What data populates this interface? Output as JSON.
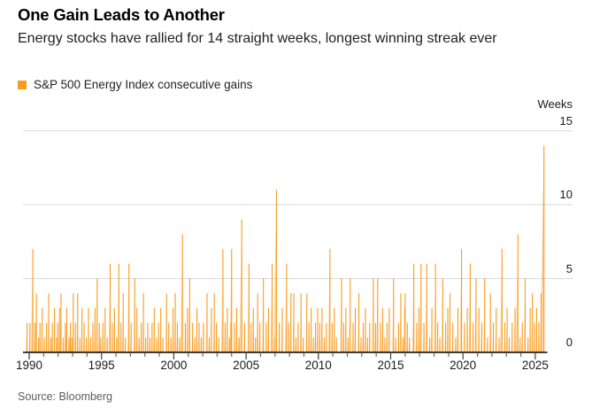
{
  "header": {
    "title": "One Gain Leads to Another",
    "subtitle": "Energy stocks have rallied for 14 straight weeks, longest winning streak ever"
  },
  "legend": {
    "label": "S&P 500 Energy Index consecutive gains",
    "marker_color": "#F79C1D"
  },
  "source": "Source: Bloomberg",
  "chart_data": {
    "type": "bar",
    "title": "One Gain Leads to Another",
    "series_name": "S&P 500 Energy Index consecutive gains",
    "xlabel": "",
    "ylabel": "Weeks",
    "ylim": [
      0,
      15
    ],
    "y_ticks": [
      0,
      5,
      10,
      15
    ],
    "xlim": [
      1989.6,
      2026.2
    ],
    "x_major_ticks": [
      1990,
      1995,
      2000,
      2005,
      2010,
      2015,
      2020,
      2025
    ],
    "x_minor_tick_step_years": 1,
    "grid": "horizontal",
    "y_axis_side": "right",
    "colors": {
      "bar_line": "#F89C1E",
      "bar_fill": "#FBAE55",
      "grid": "#D8D8D8",
      "baseline": "#000000",
      "tick_minor": "#6E6E6E",
      "tick_major": "#3F3F3F",
      "axis_text": "#1A1A1A"
    },
    "notable_peaks": [
      {
        "year": 1990.25,
        "weeks": 7
      },
      {
        "year": 1994.7,
        "weeks": 5
      },
      {
        "year": 1995.6,
        "weeks": 6
      },
      {
        "year": 1996.9,
        "weeks": 6
      },
      {
        "year": 2000.6,
        "weeks": 8
      },
      {
        "year": 2003.4,
        "weeks": 7
      },
      {
        "year": 2004.7,
        "weeks": 9
      },
      {
        "year": 2007.1,
        "weeks": 11
      },
      {
        "year": 2010.8,
        "weeks": 7
      },
      {
        "year": 2019.9,
        "weeks": 7
      },
      {
        "year": 2022.7,
        "weeks": 7
      },
      {
        "year": 2023.8,
        "weeks": 8
      },
      {
        "year": 2025.6,
        "weeks": 14
      }
    ],
    "streaks": [
      [
        1989.85,
        2
      ],
      [
        1990.05,
        2
      ],
      [
        1990.25,
        7
      ],
      [
        1990.4,
        2
      ],
      [
        1990.5,
        4
      ],
      [
        1990.65,
        1
      ],
      [
        1990.75,
        2
      ],
      [
        1990.9,
        3
      ],
      [
        1991.05,
        1
      ],
      [
        1991.2,
        2
      ],
      [
        1991.35,
        4
      ],
      [
        1991.5,
        1
      ],
      [
        1991.6,
        2
      ],
      [
        1991.75,
        3
      ],
      [
        1991.9,
        1
      ],
      [
        1991.97,
        2
      ],
      [
        1992.1,
        3
      ],
      [
        1992.2,
        4
      ],
      [
        1992.35,
        1
      ],
      [
        1992.5,
        2
      ],
      [
        1992.6,
        3
      ],
      [
        1992.75,
        1
      ],
      [
        1992.85,
        2
      ],
      [
        1992.95,
        1
      ],
      [
        1993.05,
        4
      ],
      [
        1993.2,
        2
      ],
      [
        1993.35,
        4
      ],
      [
        1993.5,
        1
      ],
      [
        1993.65,
        3
      ],
      [
        1993.8,
        2
      ],
      [
        1993.95,
        1
      ],
      [
        1994.1,
        3
      ],
      [
        1994.25,
        1
      ],
      [
        1994.4,
        2
      ],
      [
        1994.55,
        3
      ],
      [
        1994.7,
        5
      ],
      [
        1994.85,
        2
      ],
      [
        1994.95,
        1
      ],
      [
        1995.1,
        2
      ],
      [
        1995.25,
        3
      ],
      [
        1995.4,
        1
      ],
      [
        1995.6,
        6
      ],
      [
        1995.75,
        2
      ],
      [
        1995.9,
        3
      ],
      [
        1996.05,
        1
      ],
      [
        1996.2,
        6
      ],
      [
        1996.35,
        2
      ],
      [
        1996.5,
        4
      ],
      [
        1996.65,
        1
      ],
      [
        1996.9,
        6
      ],
      [
        1997.05,
        2
      ],
      [
        1997.3,
        5
      ],
      [
        1997.45,
        3
      ],
      [
        1997.6,
        1
      ],
      [
        1997.75,
        2
      ],
      [
        1997.9,
        4
      ],
      [
        1998.05,
        1
      ],
      [
        1998.2,
        2
      ],
      [
        1998.35,
        1
      ],
      [
        1998.5,
        2
      ],
      [
        1998.65,
        3
      ],
      [
        1998.8,
        1
      ],
      [
        1998.95,
        2
      ],
      [
        1999.1,
        3
      ],
      [
        1999.25,
        1
      ],
      [
        1999.5,
        4
      ],
      [
        1999.65,
        2
      ],
      [
        1999.8,
        1
      ],
      [
        1999.95,
        3
      ],
      [
        2000.1,
        4
      ],
      [
        2000.25,
        2
      ],
      [
        2000.4,
        1
      ],
      [
        2000.6,
        8
      ],
      [
        2000.8,
        2
      ],
      [
        2000.95,
        3
      ],
      [
        2001.1,
        5
      ],
      [
        2001.3,
        2
      ],
      [
        2001.45,
        1
      ],
      [
        2001.6,
        3
      ],
      [
        2001.75,
        2
      ],
      [
        2001.9,
        1
      ],
      [
        2002.05,
        2
      ],
      [
        2002.3,
        4
      ],
      [
        2002.45,
        1
      ],
      [
        2002.6,
        3
      ],
      [
        2002.8,
        4
      ],
      [
        2002.95,
        2
      ],
      [
        2003.1,
        1
      ],
      [
        2003.4,
        7
      ],
      [
        2003.55,
        2
      ],
      [
        2003.7,
        3
      ],
      [
        2003.85,
        1
      ],
      [
        2003.95,
        2
      ],
      [
        2004.0,
        7
      ],
      [
        2004.2,
        2
      ],
      [
        2004.35,
        3
      ],
      [
        2004.5,
        1
      ],
      [
        2004.7,
        9
      ],
      [
        2004.9,
        2
      ],
      [
        2005.2,
        6
      ],
      [
        2005.35,
        2
      ],
      [
        2005.5,
        3
      ],
      [
        2005.65,
        1
      ],
      [
        2005.8,
        4
      ],
      [
        2005.95,
        2
      ],
      [
        2006.2,
        5
      ],
      [
        2006.4,
        2
      ],
      [
        2006.55,
        3
      ],
      [
        2006.8,
        6
      ],
      [
        2006.95,
        1
      ],
      [
        2007.1,
        11
      ],
      [
        2007.3,
        2
      ],
      [
        2007.5,
        3
      ],
      [
        2007.8,
        6
      ],
      [
        2007.95,
        2
      ],
      [
        2008.1,
        4
      ],
      [
        2008.3,
        4
      ],
      [
        2008.45,
        1
      ],
      [
        2008.6,
        2
      ],
      [
        2008.8,
        4
      ],
      [
        2008.95,
        1
      ],
      [
        2009.2,
        4
      ],
      [
        2009.35,
        2
      ],
      [
        2009.5,
        3
      ],
      [
        2009.65,
        1
      ],
      [
        2009.8,
        2
      ],
      [
        2009.95,
        3
      ],
      [
        2010.1,
        2
      ],
      [
        2010.25,
        3
      ],
      [
        2010.4,
        1
      ],
      [
        2010.55,
        2
      ],
      [
        2010.8,
        7
      ],
      [
        2010.95,
        2
      ],
      [
        2011.1,
        3
      ],
      [
        2011.25,
        1
      ],
      [
        2011.6,
        5
      ],
      [
        2011.75,
        2
      ],
      [
        2011.9,
        3
      ],
      [
        2012.05,
        1
      ],
      [
        2012.2,
        5
      ],
      [
        2012.4,
        2
      ],
      [
        2012.55,
        3
      ],
      [
        2012.8,
        4
      ],
      [
        2012.95,
        1
      ],
      [
        2013.1,
        2
      ],
      [
        2013.25,
        3
      ],
      [
        2013.4,
        1
      ],
      [
        2013.55,
        2
      ],
      [
        2013.8,
        5
      ],
      [
        2013.95,
        2
      ],
      [
        2014.1,
        5
      ],
      [
        2014.3,
        2
      ],
      [
        2014.45,
        3
      ],
      [
        2014.6,
        1
      ],
      [
        2014.75,
        2
      ],
      [
        2014.9,
        3
      ],
      [
        2015.2,
        5
      ],
      [
        2015.35,
        1
      ],
      [
        2015.55,
        2
      ],
      [
        2015.7,
        4
      ],
      [
        2015.85,
        1
      ],
      [
        2015.97,
        3
      ],
      [
        2016.0,
        4
      ],
      [
        2016.15,
        2
      ],
      [
        2016.3,
        1
      ],
      [
        2016.6,
        6
      ],
      [
        2016.8,
        2
      ],
      [
        2016.95,
        3
      ],
      [
        2017.1,
        6
      ],
      [
        2017.3,
        2
      ],
      [
        2017.5,
        6
      ],
      [
        2017.7,
        1
      ],
      [
        2017.85,
        3
      ],
      [
        2018.1,
        6
      ],
      [
        2018.25,
        2
      ],
      [
        2018.4,
        1
      ],
      [
        2018.6,
        5
      ],
      [
        2018.8,
        2
      ],
      [
        2018.95,
        3
      ],
      [
        2019.1,
        4
      ],
      [
        2019.3,
        2
      ],
      [
        2019.5,
        1
      ],
      [
        2019.65,
        3
      ],
      [
        2019.9,
        7
      ],
      [
        2020.1,
        2
      ],
      [
        2020.3,
        3
      ],
      [
        2020.5,
        6
      ],
      [
        2020.7,
        2
      ],
      [
        2020.9,
        5
      ],
      [
        2021.1,
        3
      ],
      [
        2021.3,
        2
      ],
      [
        2021.5,
        5
      ],
      [
        2021.7,
        1
      ],
      [
        2021.9,
        4
      ],
      [
        2022.1,
        2
      ],
      [
        2022.3,
        3
      ],
      [
        2022.5,
        1
      ],
      [
        2022.7,
        7
      ],
      [
        2022.9,
        2
      ],
      [
        2023.05,
        3
      ],
      [
        2023.2,
        1
      ],
      [
        2023.4,
        2
      ],
      [
        2023.6,
        3
      ],
      [
        2023.8,
        8
      ],
      [
        2023.95,
        1
      ],
      [
        2024.1,
        2
      ],
      [
        2024.3,
        5
      ],
      [
        2024.5,
        1
      ],
      [
        2024.65,
        3
      ],
      [
        2024.8,
        4
      ],
      [
        2024.95,
        2
      ],
      [
        2025.1,
        3
      ],
      [
        2025.25,
        2
      ],
      [
        2025.4,
        4
      ],
      [
        2025.6,
        14
      ]
    ]
  }
}
